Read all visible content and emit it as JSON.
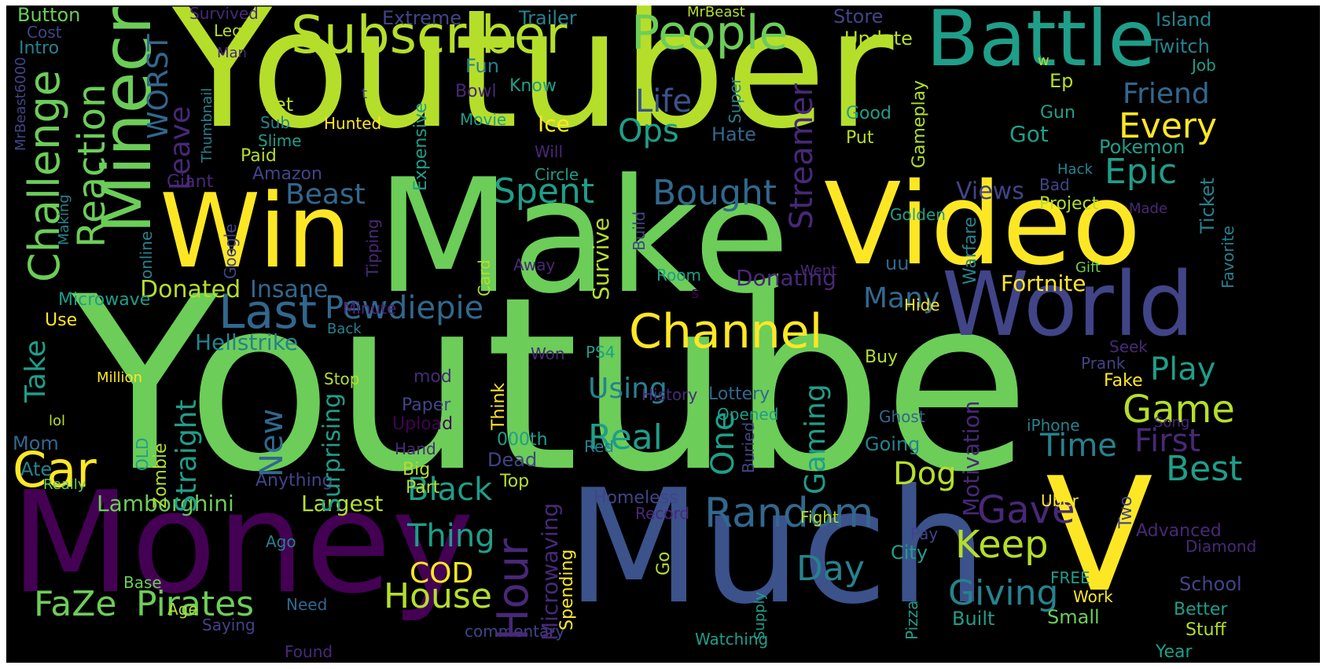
{
  "palette": {
    "green": "#6ccd59",
    "lime": "#b5de2b",
    "yellow": "#fde725",
    "teal": "#1f9e89",
    "teal_light": "#35b779",
    "blue": "#3b528b",
    "slate": "#31688e",
    "indigo": "#414487",
    "purple": "#482878",
    "dark_purple": "#440154",
    "cyan": "#26828e"
  },
  "words": [
    {
      "text": "Youtuber",
      "color": "lime"
    },
    {
      "text": "Youtube",
      "color": "green"
    },
    {
      "text": "Make",
      "color": "green"
    },
    {
      "text": "Video",
      "color": "yellow"
    },
    {
      "text": "Win",
      "color": "yellow"
    },
    {
      "text": "Money",
      "color": "dark_purple"
    },
    {
      "text": "Much",
      "color": "blue"
    },
    {
      "text": "V",
      "color": "yellow"
    },
    {
      "text": "World",
      "color": "indigo"
    },
    {
      "text": "Battle",
      "color": "teal"
    },
    {
      "text": "Minecraft",
      "color": "green"
    },
    {
      "text": "Subscriber",
      "color": "lime"
    },
    {
      "text": "People",
      "color": "green"
    },
    {
      "text": "Challenge",
      "color": "green"
    },
    {
      "text": "Reaction",
      "color": "green"
    },
    {
      "text": "Channel",
      "color": "yellow"
    },
    {
      "text": "Random",
      "color": "slate"
    },
    {
      "text": "Hour",
      "color": "purple"
    },
    {
      "text": "Last",
      "color": "slate"
    },
    {
      "text": "Car",
      "color": "yellow"
    },
    {
      "text": "Keep",
      "color": "lime"
    },
    {
      "text": "Game",
      "color": "lime"
    },
    {
      "text": "Pirates",
      "color": "green"
    },
    {
      "text": "House",
      "color": "lime"
    },
    {
      "text": "Pewdiepie",
      "color": "slate"
    },
    {
      "text": "Giving",
      "color": "cyan"
    },
    {
      "text": "Black",
      "color": "teal"
    },
    {
      "text": "Thing",
      "color": "teal"
    },
    {
      "text": "Real",
      "color": "teal"
    },
    {
      "text": "Epic",
      "color": "teal"
    },
    {
      "text": "Every",
      "color": "yellow"
    },
    {
      "text": "Best",
      "color": "teal"
    },
    {
      "text": "Gave",
      "color": "purple"
    },
    {
      "text": "Day",
      "color": "cyan"
    },
    {
      "text": "FaZe",
      "color": "green"
    },
    {
      "text": "Beast",
      "color": "slate"
    },
    {
      "text": "Spent",
      "color": "teal"
    },
    {
      "text": "Bought",
      "color": "slate"
    },
    {
      "text": "Life",
      "color": "blue"
    },
    {
      "text": "Ops",
      "color": "teal"
    },
    {
      "text": "Time",
      "color": "cyan"
    },
    {
      "text": "First",
      "color": "purple"
    },
    {
      "text": "Play",
      "color": "teal"
    },
    {
      "text": "Many",
      "color": "slate"
    },
    {
      "text": "COD",
      "color": "yellow"
    },
    {
      "text": "Streamer",
      "color": "purple"
    },
    {
      "text": "WORST",
      "color": "slate"
    },
    {
      "text": "Straight",
      "color": "teal"
    },
    {
      "text": "New",
      "color": "slate"
    },
    {
      "text": "One",
      "color": "teal"
    },
    {
      "text": "Gaming",
      "color": "teal"
    },
    {
      "text": "Take",
      "color": "teal"
    },
    {
      "text": "Friend",
      "color": "slate"
    },
    {
      "text": "Leave",
      "color": "purple"
    },
    {
      "text": "Using",
      "color": "cyan"
    },
    {
      "text": "Surprising",
      "color": "teal"
    },
    {
      "text": "Insane",
      "color": "slate"
    },
    {
      "text": "Donated",
      "color": "lime"
    },
    {
      "text": "Lamborghini",
      "color": "green"
    },
    {
      "text": "Largest",
      "color": "lime"
    },
    {
      "text": "Fortnite",
      "color": "yellow"
    },
    {
      "text": "Donating",
      "color": "purple"
    },
    {
      "text": "Hellstrike",
      "color": "cyan"
    },
    {
      "text": "Views",
      "color": "indigo"
    },
    {
      "text": "Survive",
      "color": "lime"
    },
    {
      "text": "Microwaving",
      "color": "purple"
    },
    {
      "text": "Motivation",
      "color": "purple"
    },
    {
      "text": "Ice",
      "color": "yellow"
    },
    {
      "text": "Update",
      "color": "lime"
    },
    {
      "text": "Trailer",
      "color": "cyan"
    },
    {
      "text": "Extreme",
      "color": "indigo"
    },
    {
      "text": "Store",
      "color": "indigo"
    },
    {
      "text": "Island",
      "color": "cyan"
    },
    {
      "text": "Twitch",
      "color": "cyan"
    },
    {
      "text": "Button",
      "color": "green"
    },
    {
      "text": "Cost",
      "color": "indigo"
    },
    {
      "text": "Intro",
      "color": "cyan"
    },
    {
      "text": "Survived",
      "color": "purple"
    },
    {
      "text": "Lego",
      "color": "lime"
    },
    {
      "text": "Man",
      "color": "purple"
    },
    {
      "text": "MrBeast",
      "color": "lime"
    },
    {
      "text": "Fun",
      "color": "cyan"
    },
    {
      "text": "Know",
      "color": "teal"
    },
    {
      "text": "Bowl",
      "color": "purple"
    },
    {
      "text": "Movie",
      "color": "teal"
    },
    {
      "text": "Hunted",
      "color": "yellow"
    },
    {
      "text": "Let",
      "color": "lime"
    },
    {
      "text": "Sub",
      "color": "cyan"
    },
    {
      "text": "Slime",
      "color": "teal"
    },
    {
      "text": "Paid",
      "color": "lime"
    },
    {
      "text": "Amazon",
      "color": "indigo"
    },
    {
      "text": "Giant",
      "color": "purple"
    },
    {
      "text": "Expensive",
      "color": "teal"
    },
    {
      "text": "Circle",
      "color": "teal"
    },
    {
      "text": "Will",
      "color": "purple"
    },
    {
      "text": "Hate",
      "color": "slate"
    },
    {
      "text": "Super",
      "color": "cyan"
    },
    {
      "text": "Good",
      "color": "teal"
    },
    {
      "text": "Put",
      "color": "lime"
    },
    {
      "text": "Got",
      "color": "teal"
    },
    {
      "text": "Gun",
      "color": "teal"
    },
    {
      "text": "Job",
      "color": "teal"
    },
    {
      "text": "Ep",
      "color": "lime"
    },
    {
      "text": "w",
      "color": "lime"
    },
    {
      "text": "t",
      "color": "indigo"
    },
    {
      "text": "Gameplay",
      "color": "lime"
    },
    {
      "text": "Pokemon",
      "color": "teal"
    },
    {
      "text": "Hack",
      "color": "cyan"
    },
    {
      "text": "Bad",
      "color": "indigo"
    },
    {
      "text": "Project",
      "color": "lime"
    },
    {
      "text": "Made",
      "color": "purple"
    },
    {
      "text": "Ticket",
      "color": "cyan"
    },
    {
      "text": "Golden",
      "color": "teal"
    },
    {
      "text": "Gift",
      "color": "green"
    },
    {
      "text": "Went",
      "color": "purple"
    },
    {
      "text": "uu",
      "color": "slate"
    },
    {
      "text": "Warfare",
      "color": "cyan"
    },
    {
      "text": "Favorite",
      "color": "cyan"
    },
    {
      "text": "Seek",
      "color": "purple"
    },
    {
      "text": "Prank",
      "color": "indigo"
    },
    {
      "text": "Fake",
      "color": "yellow"
    },
    {
      "text": "Song",
      "color": "purple"
    },
    {
      "text": "iPhone",
      "color": "cyan"
    },
    {
      "text": "Going",
      "color": "cyan"
    },
    {
      "text": "Ghost",
      "color": "slate"
    },
    {
      "text": "Uber",
      "color": "yellow"
    },
    {
      "text": "Two",
      "color": "indigo"
    },
    {
      "text": "Advanced",
      "color": "purple"
    },
    {
      "text": "Diamond",
      "color": "purple"
    },
    {
      "text": "Pay",
      "color": "indigo"
    },
    {
      "text": "City",
      "color": "teal"
    },
    {
      "text": "School",
      "color": "indigo"
    },
    {
      "text": "FREE",
      "color": "teal"
    },
    {
      "text": "Work",
      "color": "yellow"
    },
    {
      "text": "Small",
      "color": "green"
    },
    {
      "text": "Built",
      "color": "teal"
    },
    {
      "text": "Better",
      "color": "teal"
    },
    {
      "text": "Stuff",
      "color": "lime"
    },
    {
      "text": "Year",
      "color": "teal"
    },
    {
      "text": "Pizza",
      "color": "teal"
    },
    {
      "text": "Supply",
      "color": "teal"
    },
    {
      "text": "Watching",
      "color": "teal"
    },
    {
      "text": "Go",
      "color": "lime"
    },
    {
      "text": "Spending",
      "color": "yellow"
    },
    {
      "text": "commentary",
      "color": "indigo"
    },
    {
      "text": "Found",
      "color": "purple"
    },
    {
      "text": "Need",
      "color": "slate"
    },
    {
      "text": "Saying",
      "color": "indigo"
    },
    {
      "text": "Age",
      "color": "lime"
    },
    {
      "text": "Base",
      "color": "green"
    },
    {
      "text": "Ago",
      "color": "cyan"
    },
    {
      "text": "OLD",
      "color": "teal"
    },
    {
      "text": "Zombie",
      "color": "lime"
    },
    {
      "text": "Anything",
      "color": "indigo"
    },
    {
      "text": "Big",
      "color": "lime"
    },
    {
      "text": "Part",
      "color": "lime"
    },
    {
      "text": "Top",
      "color": "lime"
    },
    {
      "text": "Dead",
      "color": "indigo"
    },
    {
      "text": "000th",
      "color": "teal"
    },
    {
      "text": "Think",
      "color": "yellow"
    },
    {
      "text": "Hand",
      "color": "purple"
    },
    {
      "text": "Upload",
      "color": "dark_purple"
    },
    {
      "text": "Paper",
      "color": "indigo"
    },
    {
      "text": "mod",
      "color": "purple"
    },
    {
      "text": "Stop",
      "color": "lime"
    },
    {
      "text": "Back",
      "color": "cyan"
    },
    {
      "text": "Minute",
      "color": "purple"
    },
    {
      "text": "Won",
      "color": "purple"
    },
    {
      "text": "PS4",
      "color": "teal"
    },
    {
      "text": "Buy",
      "color": "lime"
    },
    {
      "text": "Lottery",
      "color": "slate"
    },
    {
      "text": "Opened",
      "color": "teal"
    },
    {
      "text": "Buried",
      "color": "indigo"
    },
    {
      "text": "History",
      "color": "purple"
    },
    {
      "text": "Red",
      "color": "cyan"
    },
    {
      "text": "Homeless",
      "color": "indigo"
    },
    {
      "text": "Record",
      "color": "purple"
    },
    {
      "text": "Fight",
      "color": "lime"
    },
    {
      "text": "Dog",
      "color": "lime"
    },
    {
      "text": "s",
      "color": "dark_purple"
    },
    {
      "text": "Room",
      "color": "teal"
    },
    {
      "text": "Build",
      "color": "indigo"
    },
    {
      "text": "Away",
      "color": "purple"
    },
    {
      "text": "Card",
      "color": "lime"
    },
    {
      "text": "Tipping",
      "color": "purple"
    },
    {
      "text": "Google",
      "color": "indigo"
    },
    {
      "text": "Hide",
      "color": "yellow"
    },
    {
      "text": "Microwave",
      "color": "teal"
    },
    {
      "text": "Use",
      "color": "yellow"
    },
    {
      "text": "Million",
      "color": "yellow"
    },
    {
      "text": "lol",
      "color": "lime"
    },
    {
      "text": "Mom",
      "color": "slate"
    },
    {
      "text": "Ate",
      "color": "cyan"
    },
    {
      "text": "Really",
      "color": "green"
    },
    {
      "text": "online",
      "color": "cyan"
    },
    {
      "text": "Making",
      "color": "cyan"
    },
    {
      "text": "MrBeast6000",
      "color": "indigo"
    },
    {
      "text": "Thumbnail",
      "color": "cyan"
    },
    {
      "text": "Surviving",
      "color": "teal"
    },
    {
      "text": "Drop",
      "color": "teal"
    }
  ]
}
